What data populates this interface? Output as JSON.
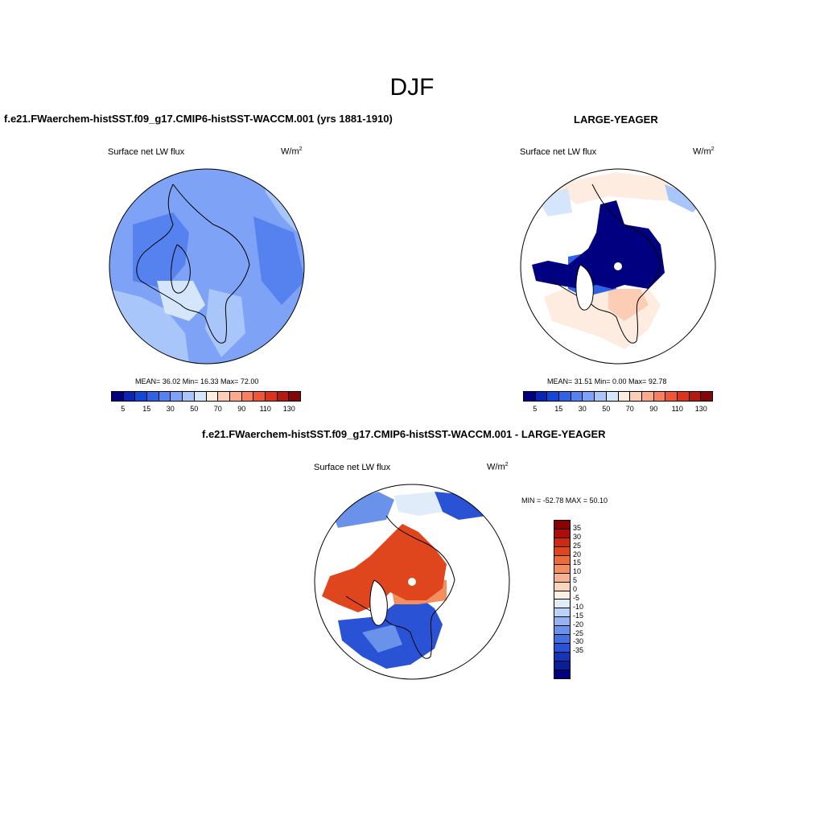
{
  "figure": {
    "title": "DJF"
  },
  "panel_left": {
    "title": "f.e21.FWaerchem-histSST.f09_g17.CMIP6-histSST-WACCM.001 (yrs 1881-1910)",
    "variable": "Surface net LW flux",
    "units": "W/m",
    "units_sup": "2",
    "stats": "MEAN=  36.02  Min=  16.33  Max=  72.00"
  },
  "panel_right": {
    "title": "LARGE-YEAGER",
    "variable": "Surface net LW flux",
    "units": "W/m",
    "units_sup": "2",
    "stats": "MEAN=  31.51  Min=   0.00  Max=  92.78"
  },
  "panel_diff": {
    "title": "f.e21.FWaerchem-histSST.f09_g17.CMIP6-histSST-WACCM.001 - LARGE-YEAGER",
    "variable": "Surface net LW flux",
    "units": "W/m",
    "units_sup": "2",
    "stats": "MIN = -52.78 MAX =  50.10"
  },
  "colorbar_abs": {
    "colors": [
      "#000080",
      "#0a25b5",
      "#1447d6",
      "#2e63e6",
      "#5582ef",
      "#7ea2f5",
      "#a9c6fa",
      "#d5e6fb",
      "#fdecdf",
      "#fdccb5",
      "#fca98c",
      "#f7805e",
      "#ee5636",
      "#d9341e",
      "#b31a10",
      "#850606"
    ],
    "tick_labels": [
      "5",
      "15",
      "30",
      "50",
      "70",
      "90",
      "110",
      "130"
    ]
  },
  "colorbar_diff": {
    "colors": [
      "#8b0000",
      "#ae0e0a",
      "#cc2a12",
      "#e0461e",
      "#f06a38",
      "#f58e5f",
      "#f9b291",
      "#fdd5bd",
      "#fff0e2",
      "#e1ecfb",
      "#bcd3f7",
      "#93b4f1",
      "#6a92ea",
      "#4270e2",
      "#2a52d4",
      "#1535b8",
      "#0a1f96",
      "#000080"
    ],
    "tick_labels": [
      "35",
      "30",
      "25",
      "20",
      "15",
      "10",
      "5",
      "0",
      "-5",
      "-10",
      "-15",
      "-20",
      "-25",
      "-30",
      "-35"
    ]
  },
  "map_colors": {
    "left_base": "#7ea2f5",
    "left_dark": "#5582ef",
    "left_light": "#a9c6fa",
    "left_pale": "#d5e6fb",
    "left_warm": "#fdecdf",
    "right_base": "#fdecdf",
    "right_ice": "#000080",
    "right_ice_edge": "#2e63e6",
    "right_pale": "#d5e6fb",
    "right_warm": "#fdccb5",
    "diff_base": "#e1ecfb",
    "diff_warm": "#e0461e",
    "diff_warm_light": "#f58e5f",
    "diff_cold": "#2a52d4",
    "diff_cold_light": "#6a92ea",
    "land_blank": "#ffffff"
  }
}
